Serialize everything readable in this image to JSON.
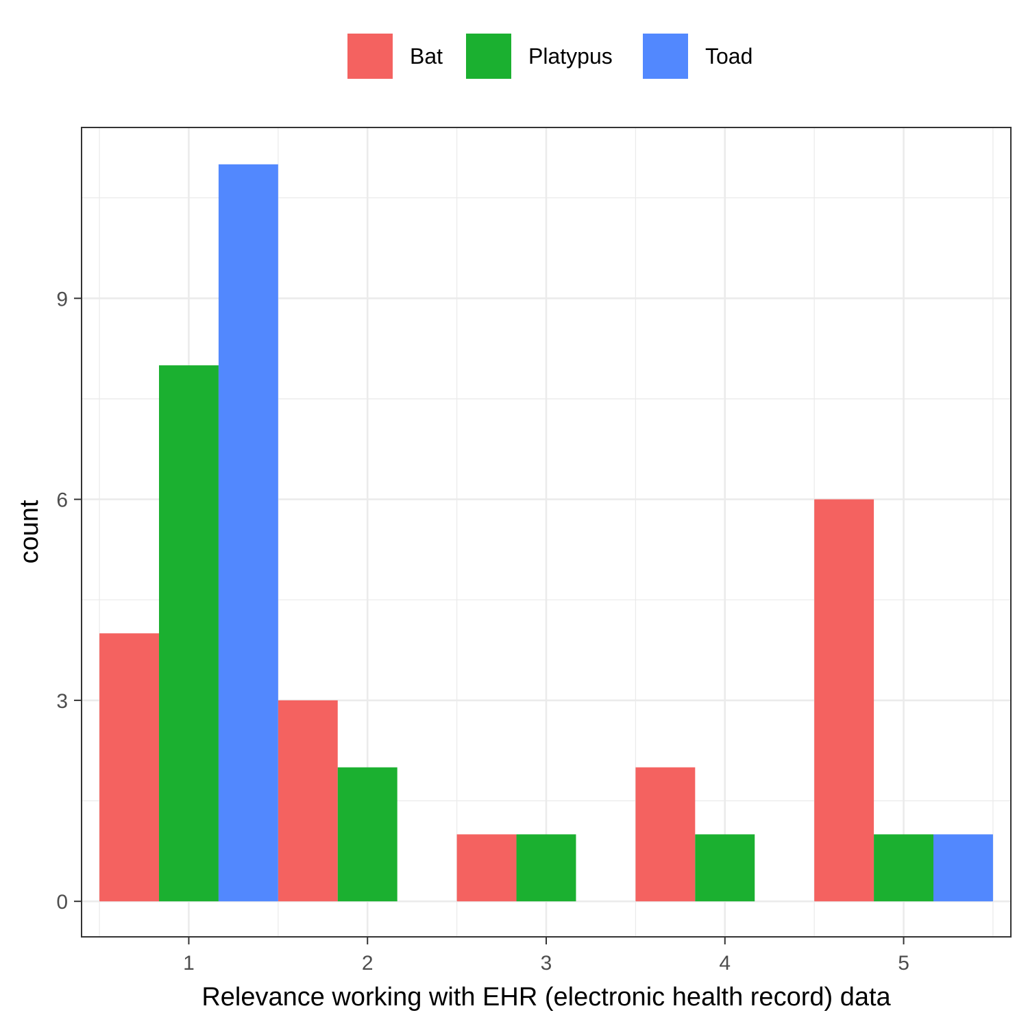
{
  "chart_data": {
    "type": "bar",
    "categories": [
      "1",
      "2",
      "3",
      "4",
      "5"
    ],
    "series": [
      {
        "name": "Bat",
        "color": "#F46260",
        "values": [
          4,
          3,
          1,
          2,
          6
        ]
      },
      {
        "name": "Platypus",
        "color": "#1BB030",
        "values": [
          8,
          2,
          1,
          1,
          1
        ]
      },
      {
        "name": "Toad",
        "color": "#5288FE",
        "values": [
          11,
          0,
          0,
          0,
          1
        ]
      }
    ],
    "xlabel": "Relevance working with EHR (electronic health record) data",
    "ylabel": "count",
    "ylim": [
      -0.53,
      11.55
    ],
    "yticks": [
      0,
      3,
      6,
      9
    ],
    "legend_position": "top",
    "grid": true
  }
}
